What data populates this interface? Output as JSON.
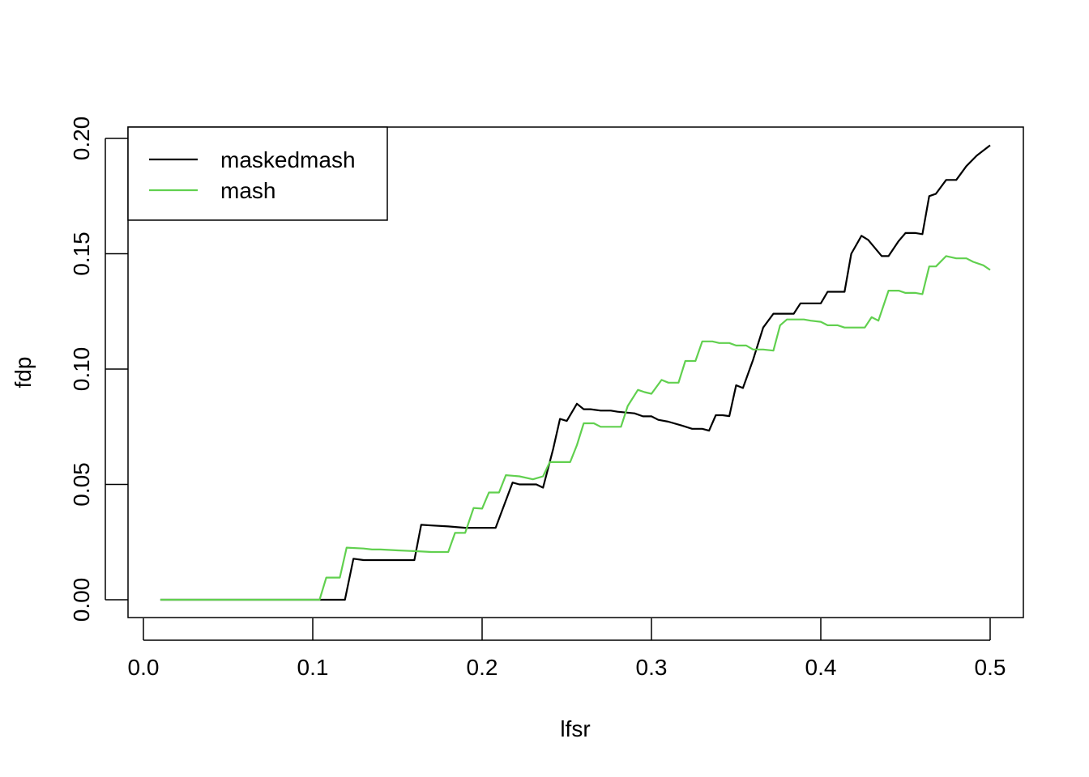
{
  "chart_data": {
    "type": "line",
    "title": "",
    "xlabel": "lfsr",
    "ylabel": "fdp",
    "xlim": [
      0.0,
      0.5
    ],
    "ylim": [
      0.0,
      0.2
    ],
    "x_ticks": [
      "0.0",
      "0.1",
      "0.2",
      "0.3",
      "0.4",
      "0.5"
    ],
    "y_ticks": [
      "0.00",
      "0.05",
      "0.10",
      "0.15",
      "0.20"
    ],
    "grid": false,
    "legend_position": "top-left",
    "series": [
      {
        "name": "maskedmash",
        "color": "#000000",
        "points": [
          [
            0.01,
            0.0
          ],
          [
            0.11,
            0.0
          ],
          [
            0.119,
            0.0
          ],
          [
            0.124,
            0.0178
          ],
          [
            0.13,
            0.0172
          ],
          [
            0.14,
            0.0172
          ],
          [
            0.15,
            0.0172
          ],
          [
            0.16,
            0.0172
          ],
          [
            0.164,
            0.0325
          ],
          [
            0.17,
            0.0322
          ],
          [
            0.18,
            0.0318
          ],
          [
            0.19,
            0.0312
          ],
          [
            0.2,
            0.0312
          ],
          [
            0.208,
            0.0312
          ],
          [
            0.218,
            0.0508
          ],
          [
            0.222,
            0.05
          ],
          [
            0.232,
            0.05
          ],
          [
            0.236,
            0.0486
          ],
          [
            0.242,
            0.0655
          ],
          [
            0.246,
            0.0784
          ],
          [
            0.25,
            0.0775
          ],
          [
            0.256,
            0.085
          ],
          [
            0.26,
            0.0826
          ],
          [
            0.264,
            0.0826
          ],
          [
            0.27,
            0.082
          ],
          [
            0.276,
            0.082
          ],
          [
            0.28,
            0.0815
          ],
          [
            0.29,
            0.0808
          ],
          [
            0.295,
            0.0795
          ],
          [
            0.3,
            0.0795
          ],
          [
            0.304,
            0.078
          ],
          [
            0.31,
            0.0772
          ],
          [
            0.318,
            0.0755
          ],
          [
            0.324,
            0.0741
          ],
          [
            0.33,
            0.0741
          ],
          [
            0.334,
            0.0733
          ],
          [
            0.338,
            0.08
          ],
          [
            0.342,
            0.08
          ],
          [
            0.346,
            0.0796
          ],
          [
            0.35,
            0.093
          ],
          [
            0.354,
            0.0918
          ],
          [
            0.36,
            0.104
          ],
          [
            0.366,
            0.118
          ],
          [
            0.372,
            0.124
          ],
          [
            0.376,
            0.124
          ],
          [
            0.384,
            0.124
          ],
          [
            0.388,
            0.1285
          ],
          [
            0.396,
            0.1285
          ],
          [
            0.4,
            0.1285
          ],
          [
            0.404,
            0.1335
          ],
          [
            0.414,
            0.1335
          ],
          [
            0.418,
            0.15
          ],
          [
            0.424,
            0.1578
          ],
          [
            0.428,
            0.156
          ],
          [
            0.436,
            0.149
          ],
          [
            0.44,
            0.149
          ],
          [
            0.446,
            0.1555
          ],
          [
            0.45,
            0.159
          ],
          [
            0.456,
            0.159
          ],
          [
            0.46,
            0.1585
          ],
          [
            0.464,
            0.175
          ],
          [
            0.468,
            0.176
          ],
          [
            0.474,
            0.182
          ],
          [
            0.48,
            0.182
          ],
          [
            0.486,
            0.188
          ],
          [
            0.492,
            0.1925
          ],
          [
            0.5,
            0.197
          ]
        ]
      },
      {
        "name": "mash",
        "color": "#61D04F",
        "points": [
          [
            0.01,
            0.0
          ],
          [
            0.1,
            0.0
          ],
          [
            0.104,
            0.0
          ],
          [
            0.108,
            0.0096
          ],
          [
            0.116,
            0.0096
          ],
          [
            0.12,
            0.0226
          ],
          [
            0.13,
            0.0222
          ],
          [
            0.135,
            0.0218
          ],
          [
            0.14,
            0.0218
          ],
          [
            0.15,
            0.0214
          ],
          [
            0.16,
            0.0211
          ],
          [
            0.17,
            0.0207
          ],
          [
            0.18,
            0.0207
          ],
          [
            0.184,
            0.029
          ],
          [
            0.19,
            0.029
          ],
          [
            0.195,
            0.0398
          ],
          [
            0.2,
            0.0395
          ],
          [
            0.204,
            0.0465
          ],
          [
            0.21,
            0.0465
          ],
          [
            0.214,
            0.054
          ],
          [
            0.222,
            0.0535
          ],
          [
            0.23,
            0.0522
          ],
          [
            0.236,
            0.0535
          ],
          [
            0.24,
            0.0597
          ],
          [
            0.246,
            0.0597
          ],
          [
            0.252,
            0.0597
          ],
          [
            0.256,
            0.067
          ],
          [
            0.26,
            0.0765
          ],
          [
            0.266,
            0.0765
          ],
          [
            0.27,
            0.075
          ],
          [
            0.276,
            0.075
          ],
          [
            0.282,
            0.075
          ],
          [
            0.286,
            0.084
          ],
          [
            0.292,
            0.091
          ],
          [
            0.296,
            0.09
          ],
          [
            0.3,
            0.0893
          ],
          [
            0.306,
            0.0953
          ],
          [
            0.31,
            0.0941
          ],
          [
            0.316,
            0.0941
          ],
          [
            0.32,
            0.1035
          ],
          [
            0.326,
            0.1035
          ],
          [
            0.33,
            0.112
          ],
          [
            0.336,
            0.112
          ],
          [
            0.34,
            0.1113
          ],
          [
            0.346,
            0.1113
          ],
          [
            0.35,
            0.1102
          ],
          [
            0.356,
            0.1102
          ],
          [
            0.36,
            0.1085
          ],
          [
            0.366,
            0.1085
          ],
          [
            0.372,
            0.108
          ],
          [
            0.376,
            0.119
          ],
          [
            0.38,
            0.1215
          ],
          [
            0.384,
            0.1215
          ],
          [
            0.39,
            0.1215
          ],
          [
            0.394,
            0.121
          ],
          [
            0.4,
            0.1205
          ],
          [
            0.404,
            0.119
          ],
          [
            0.41,
            0.119
          ],
          [
            0.414,
            0.118
          ],
          [
            0.42,
            0.118
          ],
          [
            0.426,
            0.118
          ],
          [
            0.43,
            0.1225
          ],
          [
            0.434,
            0.121
          ],
          [
            0.44,
            0.134
          ],
          [
            0.446,
            0.134
          ],
          [
            0.45,
            0.133
          ],
          [
            0.456,
            0.133
          ],
          [
            0.46,
            0.1325
          ],
          [
            0.464,
            0.1445
          ],
          [
            0.468,
            0.1445
          ],
          [
            0.474,
            0.149
          ],
          [
            0.48,
            0.148
          ],
          [
            0.486,
            0.148
          ],
          [
            0.49,
            0.1465
          ],
          [
            0.496,
            0.145
          ],
          [
            0.5,
            0.143
          ]
        ]
      }
    ]
  }
}
